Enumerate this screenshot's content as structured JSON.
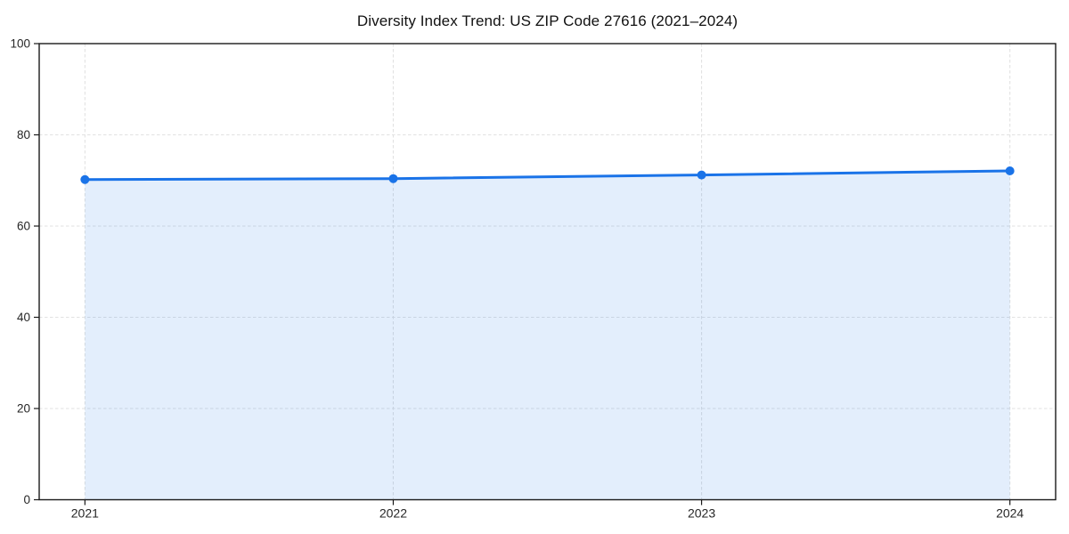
{
  "chart_data": {
    "type": "area",
    "title": "Diversity Index Trend: US ZIP Code 27616 (2021–2024)",
    "x": [
      2021,
      2022,
      2023,
      2024
    ],
    "x_tick_labels": [
      "2021",
      "2022",
      "2023",
      "2024"
    ],
    "values": [
      70.2,
      70.4,
      71.2,
      72.1
    ],
    "xlabel": "",
    "ylabel": "",
    "ylim": [
      0,
      100
    ],
    "yticks": [
      0,
      20,
      40,
      60,
      80,
      100
    ],
    "grid": "dashed",
    "legend": "none",
    "marker": "circle",
    "colors": {
      "line": "#1a73e8",
      "marker": "#1a73e8",
      "fill": "rgba(26,115,232,0.12)",
      "grid": "#e2e2e2",
      "axis": "#1a1a1a",
      "tick_label": "#262626",
      "title": "#111111",
      "background": "#ffffff"
    }
  }
}
